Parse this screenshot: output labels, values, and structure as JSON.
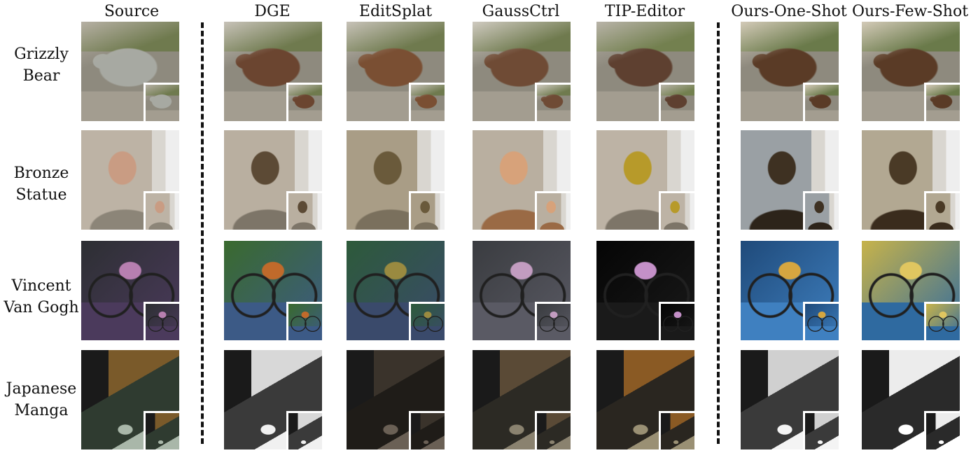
{
  "columns": [
    {
      "id": "source",
      "label": "Source"
    },
    {
      "id": "dge",
      "label": "DGE"
    },
    {
      "id": "editsplat",
      "label": "EditSplat"
    },
    {
      "id": "gaussctrl",
      "label": "GaussCtrl"
    },
    {
      "id": "tip",
      "label": "TIP-Editor"
    },
    {
      "id": "one",
      "label": "Ours-One-Shot"
    },
    {
      "id": "few",
      "label": "Ours-Few-Shot"
    }
  ],
  "rows": [
    {
      "id": "bear",
      "line1": "Grizzly",
      "line2": "Bear"
    },
    {
      "id": "bronze",
      "line1": "Bronze",
      "line2": "Statue"
    },
    {
      "id": "vangogh",
      "line1": "Vincent",
      "line2": "Van Gogh"
    },
    {
      "id": "manga",
      "line1": "Japanese",
      "line2": "Manga"
    }
  ],
  "palette": {
    "bear": {
      "source": {
        "bg": "#6f7a4e",
        "fg": "#a7a9a2",
        "acc": "#b6b0a4"
      },
      "dge": {
        "bg": "#6f7a4e",
        "fg": "#6b4530",
        "acc": "#c7c2b8"
      },
      "editsplat": {
        "bg": "#6f7a4e",
        "fg": "#7a4f33",
        "acc": "#c7c2b8"
      },
      "gaussctrl": {
        "bg": "#6f7a4e",
        "fg": "#6f4b35",
        "acc": "#cfcac0"
      },
      "tip": {
        "bg": "#73804f",
        "fg": "#5e4030",
        "acc": "#b8b3a8"
      },
      "one": {
        "bg": "#6a7a4a",
        "fg": "#5a3b26",
        "acc": "#d3cab8"
      },
      "few": {
        "bg": "#6a7a4a",
        "fg": "#5a3b26",
        "acc": "#d3cab8"
      }
    },
    "bronze": {
      "source": {
        "bg": "#bdb3a5",
        "fg": "#c99c83",
        "acc": "#8c8578"
      },
      "dge": {
        "bg": "#b9afa0",
        "fg": "#5c4a35",
        "acc": "#7d7568"
      },
      "editsplat": {
        "bg": "#a99d86",
        "fg": "#6a5a3b",
        "acc": "#7a705d"
      },
      "gaussctrl": {
        "bg": "#b9afa0",
        "fg": "#d7a27a",
        "acc": "#9a6a45"
      },
      "tip": {
        "bg": "#bdb3a5",
        "fg": "#b79a2a",
        "acc": "#7d7568"
      },
      "one": {
        "bg": "#9aa0a4",
        "fg": "#3e3122",
        "acc": "#2d241a"
      },
      "few": {
        "bg": "#b2a892",
        "fg": "#4a3a26",
        "acc": "#3a2c1d"
      }
    },
    "vangogh": {
      "source": {
        "bg": "#2d2f33",
        "fg": "#4b3a5c",
        "acc": "#b77fb0"
      },
      "dge": {
        "bg": "#3a6a2e",
        "fg": "#3c5a86",
        "acc": "#c06a2b"
      },
      "editsplat": {
        "bg": "#2d5a3a",
        "fg": "#3a4a6b",
        "acc": "#9a8a40"
      },
      "gaussctrl": {
        "bg": "#3a3c40",
        "fg": "#5a5a64",
        "acc": "#c29cc0"
      },
      "tip": {
        "bg": "#050505",
        "fg": "#1a1a1a",
        "acc": "#c490c8"
      },
      "one": {
        "bg": "#1f4a7a",
        "fg": "#3f80c0",
        "acc": "#d6a640"
      },
      "few": {
        "bg": "#c7b34a",
        "fg": "#2f6aa0",
        "acc": "#e0c660"
      }
    },
    "manga": {
      "source": {
        "bg": "#7a5a2a",
        "fg": "#2f3b30",
        "acc": "#a9b7a9"
      },
      "dge": {
        "bg": "#d8d8d8",
        "fg": "#3a3a3a",
        "acc": "#f0f0f0"
      },
      "editsplat": {
        "bg": "#3a332b",
        "fg": "#1f1c18",
        "acc": "#6a6055"
      },
      "gaussctrl": {
        "bg": "#5a4a36",
        "fg": "#2c2a24",
        "acc": "#8a826f"
      },
      "tip": {
        "bg": "#8a5a24",
        "fg": "#2a2620",
        "acc": "#9a9074"
      },
      "one": {
        "bg": "#d0d0d0",
        "fg": "#3a3a3a",
        "acc": "#f4f4f4"
      },
      "few": {
        "bg": "#ececec",
        "fg": "#2a2a2a",
        "acc": "#ffffff"
      }
    }
  }
}
